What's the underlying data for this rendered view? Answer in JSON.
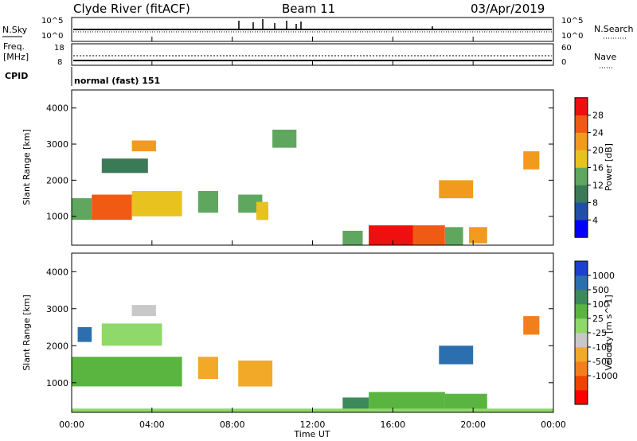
{
  "header": {
    "station": "Clyde River (fitACF)",
    "beam": "Beam 11",
    "date": "03/Apr/2019"
  },
  "nsky_panel": {
    "left_label": "N.Sky",
    "left_ticks": [
      "10^5",
      "10^0"
    ],
    "right_label": "N.Search",
    "right_ticks": [
      "10^5",
      "10^0"
    ]
  },
  "freq_panel": {
    "left_label_1": "Freq.",
    "left_label_2": "[MHz]",
    "left_ticks": [
      "18",
      "8"
    ],
    "right_label": "Nave",
    "right_ticks": [
      "60",
      "0"
    ]
  },
  "cpid": {
    "label": "CPID",
    "value": "normal (fast) 151"
  },
  "x_axis": {
    "title": "Time UT",
    "ticks": [
      "00:00",
      "04:00",
      "08:00",
      "12:00",
      "16:00",
      "20:00",
      "00:00"
    ]
  },
  "colors": {
    "power_scale": [
      "#0000ff",
      "#1f4fa8",
      "#3b7a57",
      "#5fa75f",
      "#e8c21f",
      "#f29a1e",
      "#f05a14",
      "#ee1010"
    ],
    "velocity_scale": [
      "#ff0000",
      "#ee4400",
      "#f27f1d",
      "#f2a928",
      "#c8c8c8",
      "#8fd86a",
      "#5ab540",
      "#3c8a5a",
      "#2c6fb0",
      "#1b3fcf"
    ]
  },
  "chart_data": [
    {
      "type": "heatmap",
      "name": "power",
      "ylabel": "Slant Range [km]",
      "xlabel": "Time UT",
      "xlim": [
        0,
        24
      ],
      "ylim": [
        200,
        4500
      ],
      "y_ticks": [
        "1000",
        "2000",
        "3000",
        "4000"
      ],
      "colorbar": {
        "label": "Power [dB]",
        "ticks": [
          "4",
          "8",
          "12",
          "16",
          "20",
          "24",
          "28"
        ],
        "range": [
          0,
          32
        ]
      },
      "regions": [
        {
          "t": [
            0.0,
            1.0
          ],
          "r": [
            900,
            1500
          ],
          "v": 14
        },
        {
          "t": [
            1.0,
            3.0
          ],
          "r": [
            900,
            1600
          ],
          "v": 27
        },
        {
          "t": [
            3.0,
            5.5
          ],
          "r": [
            1000,
            1700
          ],
          "v": 18
        },
        {
          "t": [
            1.5,
            3.8
          ],
          "r": [
            2200,
            2600
          ],
          "v": 9
        },
        {
          "t": [
            3.0,
            4.2
          ],
          "r": [
            2800,
            3100
          ],
          "v": 22
        },
        {
          "t": [
            6.3,
            7.3
          ],
          "r": [
            1100,
            1700
          ],
          "v": 15
        },
        {
          "t": [
            8.3,
            9.5
          ],
          "r": [
            1100,
            1600
          ],
          "v": 13
        },
        {
          "t": [
            9.2,
            9.8
          ],
          "r": [
            900,
            1400
          ],
          "v": 18
        },
        {
          "t": [
            10.0,
            11.2
          ],
          "r": [
            2900,
            3400
          ],
          "v": 14
        },
        {
          "t": [
            13.5,
            14.5
          ],
          "r": [
            200,
            600
          ],
          "v": 14
        },
        {
          "t": [
            14.8,
            17.0
          ],
          "r": [
            200,
            750
          ],
          "v": 30
        },
        {
          "t": [
            17.0,
            18.6
          ],
          "r": [
            200,
            750
          ],
          "v": 26
        },
        {
          "t": [
            18.6,
            19.5
          ],
          "r": [
            200,
            700
          ],
          "v": 14
        },
        {
          "t": [
            19.8,
            20.7
          ],
          "r": [
            250,
            700
          ],
          "v": 20
        },
        {
          "t": [
            18.3,
            20.0
          ],
          "r": [
            1500,
            2000
          ],
          "v": 20
        },
        {
          "t": [
            22.5,
            23.3
          ],
          "r": [
            2300,
            2800
          ],
          "v": 20
        }
      ]
    },
    {
      "type": "heatmap",
      "name": "velocity",
      "ylabel": "Slant Range [km]",
      "xlabel": "Time UT",
      "xlim": [
        0,
        24
      ],
      "ylim": [
        200,
        4500
      ],
      "y_ticks": [
        "1000",
        "2000",
        "3000",
        "4000"
      ],
      "colorbar": {
        "label": "Velocity [m s^-1]",
        "ticks": [
          "1000",
          "500",
          "100",
          "25",
          "-25",
          "-100",
          "-500",
          "-1000"
        ]
      },
      "regions": [
        {
          "t": [
            0.0,
            5.5
          ],
          "r": [
            900,
            1700
          ],
          "v": 100
        },
        {
          "t": [
            1.5,
            4.5
          ],
          "r": [
            2000,
            2600
          ],
          "v": 0
        },
        {
          "t": [
            0.3,
            1.0
          ],
          "r": [
            2100,
            2500
          ],
          "v": 600
        },
        {
          "t": [
            3.0,
            4.2
          ],
          "r": [
            2800,
            3100
          ],
          "v": -60
        },
        {
          "t": [
            6.3,
            7.3
          ],
          "r": [
            1100,
            1700
          ],
          "v": -200
        },
        {
          "t": [
            8.3,
            10.0
          ],
          "r": [
            900,
            1600
          ],
          "v": -200
        },
        {
          "t": [
            13.5,
            14.8
          ],
          "r": [
            200,
            600
          ],
          "v": 150
        },
        {
          "t": [
            14.8,
            18.6
          ],
          "r": [
            200,
            750
          ],
          "v": 60
        },
        {
          "t": [
            18.6,
            20.7
          ],
          "r": [
            200,
            700
          ],
          "v": 60
        },
        {
          "t": [
            18.3,
            20.0
          ],
          "r": [
            1500,
            2000
          ],
          "v": 600
        },
        {
          "t": [
            22.5,
            23.3
          ],
          "r": [
            2300,
            2800
          ],
          "v": -700
        },
        {
          "t": [
            0.0,
            24.0
          ],
          "r": [
            200,
            300
          ],
          "v": 0
        }
      ]
    }
  ]
}
